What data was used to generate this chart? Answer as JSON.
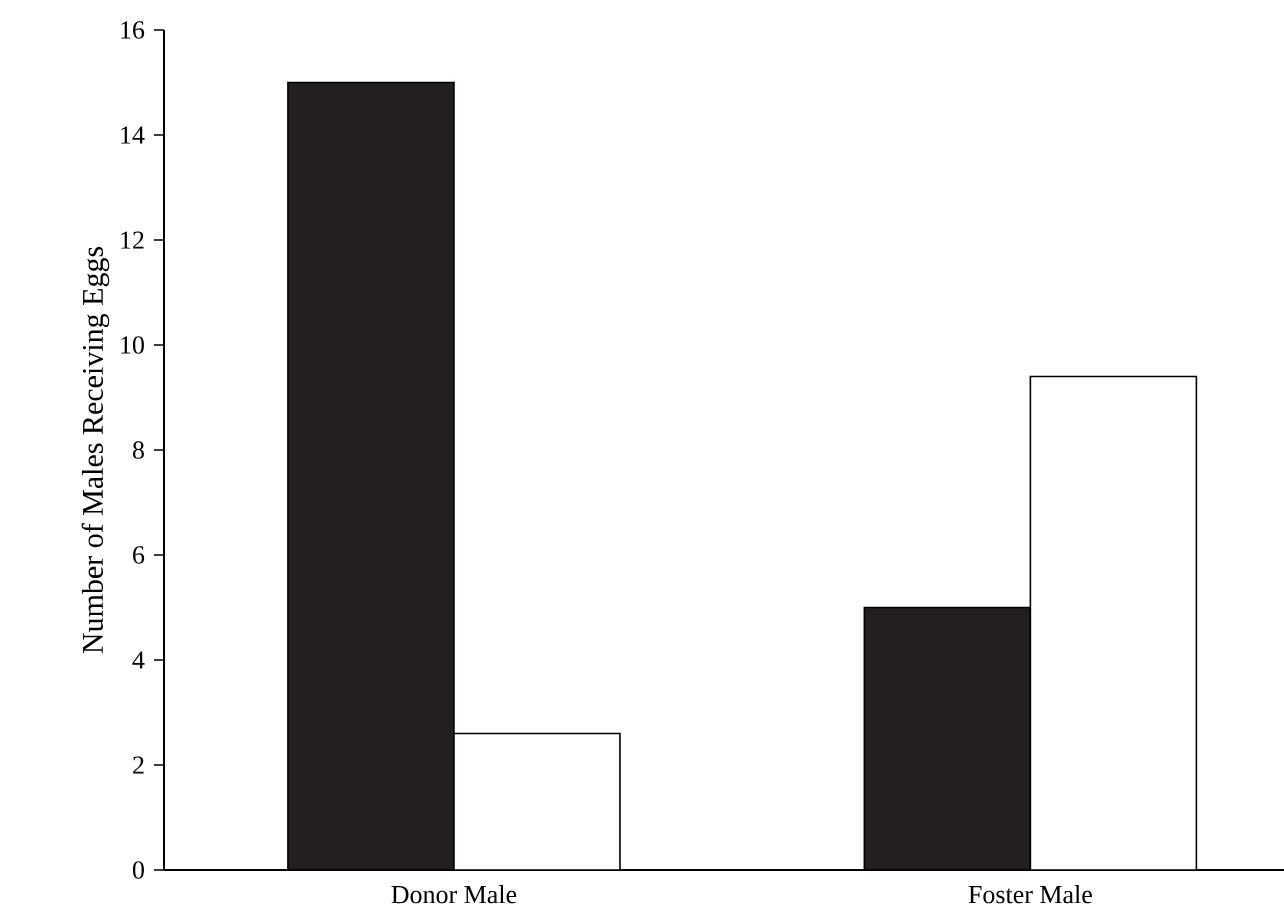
{
  "chart_data": {
    "type": "bar",
    "ylabel": "Number of Males Receiving Eggs",
    "categories": [
      "Donor Male",
      "Foster Male"
    ],
    "series": [
      {
        "color": "#231f20",
        "values": [
          15,
          5
        ]
      },
      {
        "color": "#ffffff",
        "values": [
          2.6,
          9.4
        ]
      }
    ],
    "ylim": [
      0,
      16
    ],
    "yticks": [
      0,
      2,
      4,
      6,
      8,
      10,
      12,
      14,
      16
    ]
  }
}
